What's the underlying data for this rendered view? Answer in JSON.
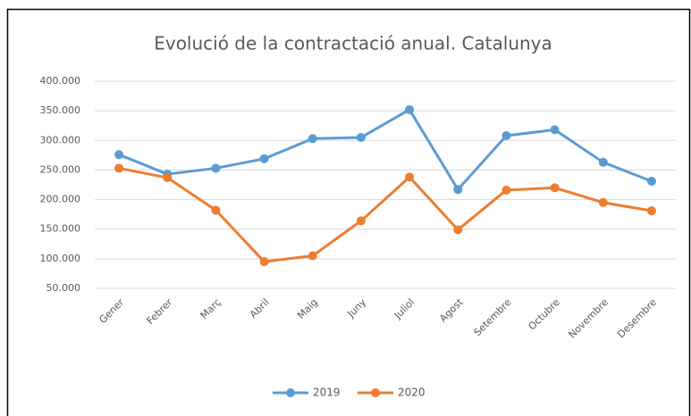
{
  "chart_data": {
    "type": "line",
    "title": "Evolució de la contractació anual. Catalunya",
    "categories": [
      "Gener",
      "Febrer",
      "Març",
      "Abril",
      "Maig",
      "Juny",
      "Juliol",
      "Agost",
      "Setembre",
      "Octubre",
      "Novembre",
      "Desembre"
    ],
    "series": [
      {
        "name": "2019",
        "color": "#5b9bd5",
        "values": [
          276000,
          243000,
          253000,
          269000,
          303000,
          305000,
          352000,
          217000,
          308000,
          318000,
          263000,
          231000
        ]
      },
      {
        "name": "2020",
        "color": "#ed7d31",
        "values": [
          253000,
          237000,
          182000,
          95000,
          105000,
          164000,
          238000,
          149000,
          216000,
          220000,
          195000,
          181000
        ]
      }
    ],
    "ylim": [
      50000,
      400000
    ],
    "yticks": [
      {
        "value": 50000,
        "label": "50.000"
      },
      {
        "value": 100000,
        "label": "100.000"
      },
      {
        "value": 150000,
        "label": "150.000"
      },
      {
        "value": 200000,
        "label": "200.000"
      },
      {
        "value": 250000,
        "label": "250.000"
      },
      {
        "value": 300000,
        "label": "300.000"
      },
      {
        "value": 350000,
        "label": "350.000"
      },
      {
        "value": 400000,
        "label": "400.000"
      }
    ],
    "grid": true,
    "legend": "bottom"
  }
}
